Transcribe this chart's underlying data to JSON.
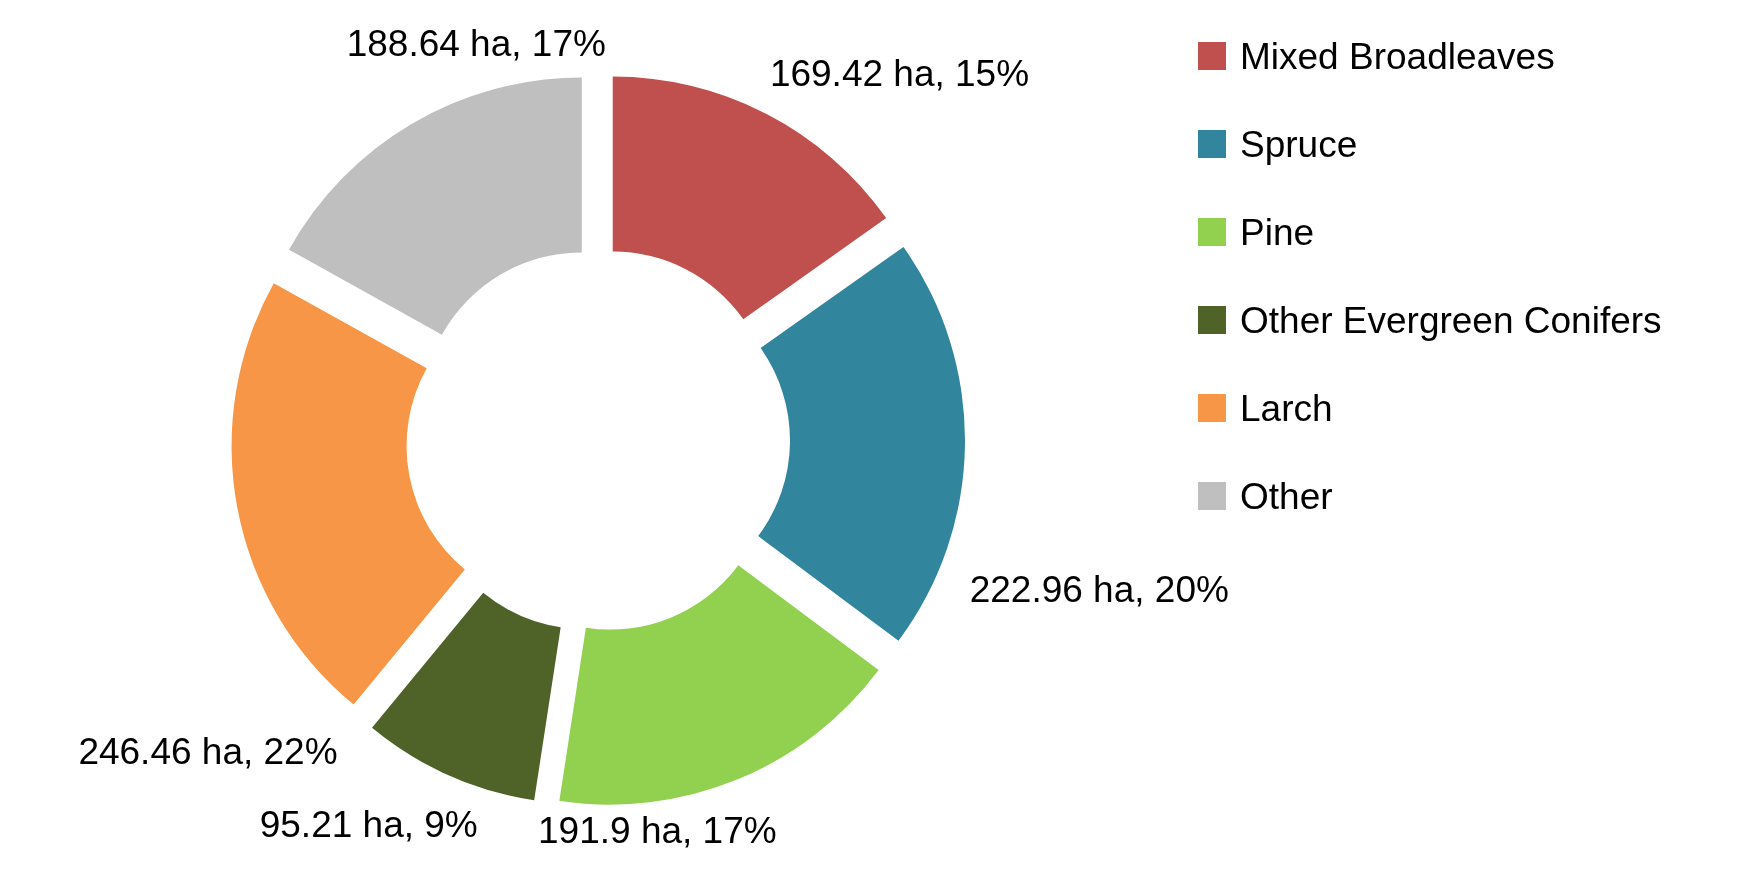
{
  "chart_data": {
    "type": "donut",
    "categories": [
      "Mixed Broadleaves",
      "Spruce",
      "Pine",
      "Other Evergreen Conifers",
      "Larch",
      "Other"
    ],
    "values": [
      169.42,
      222.96,
      191.9,
      95.21,
      246.46,
      188.64
    ],
    "colors": [
      "#c0504d",
      "#31859c",
      "#92d050",
      "#4f6228",
      "#f79646",
      "#bfbfbf"
    ],
    "value_labels": [
      "169.42 ha, 15%",
      "222.96 ha, 20%",
      "191.9 ha, 17%",
      "95.21 ha, 9%",
      "246.46 ha, 22%",
      "188.64 ha, 17%"
    ],
    "legend": "top right"
  }
}
